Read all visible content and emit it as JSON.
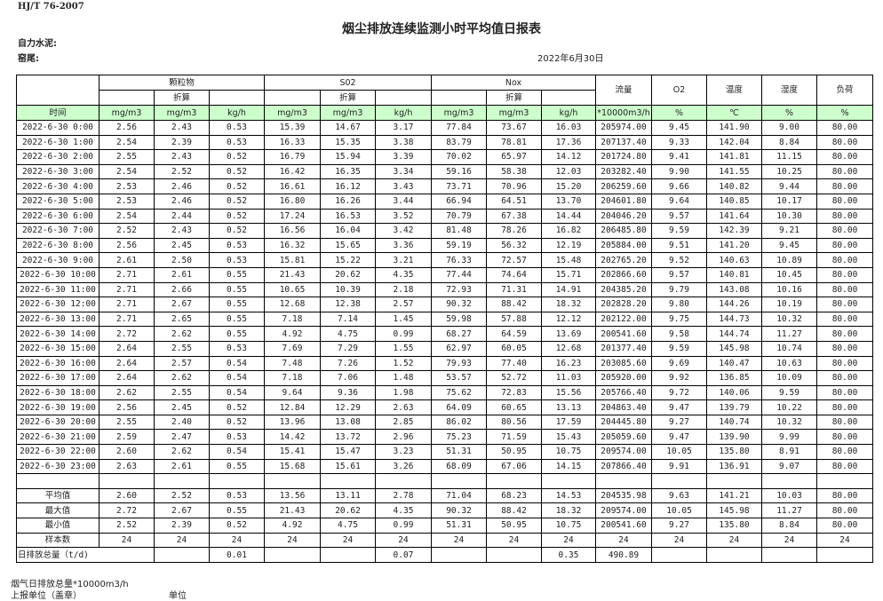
{
  "header": {
    "standard": "HJ/T  76-2007",
    "title": "烟尘排放连续监测小时平均值日报表",
    "company": "自力水泥:",
    "kiln": "窑尾:",
    "date": "2022年6月30日"
  },
  "table": {
    "groups": [
      "颗粒物",
      "S02",
      "Nox"
    ],
    "single_cols": [
      "流量",
      "O2",
      "温度",
      "湿度",
      "负荷"
    ],
    "sub_label": "折算",
    "time_label": "时间",
    "units": [
      "mg/m3",
      "mg/m3",
      "kg/h",
      "mg/m3",
      "mg/m3",
      "kg/h",
      "mg/m3",
      "mg/m3",
      "kg/h",
      "*10000m3/h",
      "%",
      "℃",
      "%",
      "%"
    ],
    "rows": [
      [
        "2022-6-30 0:00",
        "2.56",
        "2.43",
        "0.53",
        "15.39",
        "14.67",
        "3.17",
        "77.84",
        "73.67",
        "16.03",
        "205974.00",
        "9.45",
        "141.90",
        "9.00",
        "80.00"
      ],
      [
        "2022-6-30 1:00",
        "2.54",
        "2.39",
        "0.53",
        "16.33",
        "15.35",
        "3.38",
        "83.79",
        "78.81",
        "17.36",
        "207137.40",
        "9.33",
        "142.04",
        "8.84",
        "80.00"
      ],
      [
        "2022-6-30 2:00",
        "2.55",
        "2.43",
        "0.52",
        "16.79",
        "15.94",
        "3.39",
        "70.02",
        "65.97",
        "14.12",
        "201724.80",
        "9.41",
        "141.81",
        "11.15",
        "80.00"
      ],
      [
        "2022-6-30 3:00",
        "2.54",
        "2.52",
        "0.52",
        "16.42",
        "16.35",
        "3.34",
        "59.16",
        "58.38",
        "12.03",
        "203282.40",
        "9.90",
        "141.55",
        "10.25",
        "80.00"
      ],
      [
        "2022-6-30 4:00",
        "2.53",
        "2.46",
        "0.52",
        "16.61",
        "16.12",
        "3.43",
        "73.71",
        "70.96",
        "15.20",
        "206259.60",
        "9.66",
        "140.82",
        "9.44",
        "80.00"
      ],
      [
        "2022-6-30 5:00",
        "2.53",
        "2.46",
        "0.52",
        "16.80",
        "16.26",
        "3.44",
        "66.94",
        "64.51",
        "13.70",
        "204601.80",
        "9.64",
        "140.85",
        "10.17",
        "80.00"
      ],
      [
        "2022-6-30 6:00",
        "2.54",
        "2.44",
        "0.52",
        "17.24",
        "16.53",
        "3.52",
        "70.79",
        "67.38",
        "14.44",
        "204046.20",
        "9.57",
        "141.64",
        "10.30",
        "80.00"
      ],
      [
        "2022-6-30 7:00",
        "2.52",
        "2.43",
        "0.52",
        "16.56",
        "16.04",
        "3.42",
        "81.48",
        "78.26",
        "16.82",
        "206485.80",
        "9.59",
        "142.39",
        "9.21",
        "80.00"
      ],
      [
        "2022-6-30 8:00",
        "2.56",
        "2.45",
        "0.53",
        "16.32",
        "15.65",
        "3.36",
        "59.19",
        "56.32",
        "12.19",
        "205884.00",
        "9.51",
        "141.20",
        "9.45",
        "80.00"
      ],
      [
        "2022-6-30 9:00",
        "2.61",
        "2.50",
        "0.53",
        "15.81",
        "15.22",
        "3.21",
        "76.33",
        "72.57",
        "15.48",
        "202765.20",
        "9.52",
        "140.63",
        "10.89",
        "80.00"
      ],
      [
        "2022-6-30 10:00",
        "2.71",
        "2.61",
        "0.55",
        "21.43",
        "20.62",
        "4.35",
        "77.44",
        "74.64",
        "15.71",
        "202866.60",
        "9.57",
        "140.81",
        "10.45",
        "80.00"
      ],
      [
        "2022-6-30 11:00",
        "2.71",
        "2.66",
        "0.55",
        "10.65",
        "10.39",
        "2.18",
        "72.93",
        "71.31",
        "14.91",
        "204385.20",
        "9.79",
        "143.08",
        "10.16",
        "80.00"
      ],
      [
        "2022-6-30 12:00",
        "2.71",
        "2.67",
        "0.55",
        "12.68",
        "12.38",
        "2.57",
        "90.32",
        "88.42",
        "18.32",
        "202828.20",
        "9.80",
        "144.26",
        "10.19",
        "80.00"
      ],
      [
        "2022-6-30 13:00",
        "2.71",
        "2.65",
        "0.55",
        "7.18",
        "7.14",
        "1.45",
        "59.98",
        "57.88",
        "12.12",
        "202122.00",
        "9.75",
        "144.73",
        "10.32",
        "80.00"
      ],
      [
        "2022-6-30 14:00",
        "2.72",
        "2.62",
        "0.55",
        "4.92",
        "4.75",
        "0.99",
        "68.27",
        "64.59",
        "13.69",
        "200541.60",
        "9.58",
        "144.74",
        "11.27",
        "80.00"
      ],
      [
        "2022-6-30 15:00",
        "2.64",
        "2.55",
        "0.53",
        "7.69",
        "7.29",
        "1.55",
        "62.97",
        "60.05",
        "12.68",
        "201377.40",
        "9.59",
        "145.98",
        "10.74",
        "80.00"
      ],
      [
        "2022-6-30 16:00",
        "2.64",
        "2.57",
        "0.54",
        "7.48",
        "7.26",
        "1.52",
        "79.93",
        "77.40",
        "16.23",
        "203085.60",
        "9.69",
        "140.47",
        "10.63",
        "80.00"
      ],
      [
        "2022-6-30 17:00",
        "2.64",
        "2.62",
        "0.54",
        "7.18",
        "7.06",
        "1.48",
        "53.57",
        "52.72",
        "11.03",
        "205920.00",
        "9.92",
        "136.85",
        "10.09",
        "80.00"
      ],
      [
        "2022-6-30 18:00",
        "2.62",
        "2.55",
        "0.54",
        "9.64",
        "9.36",
        "1.98",
        "75.62",
        "72.83",
        "15.56",
        "205766.40",
        "9.72",
        "140.06",
        "9.59",
        "80.00"
      ],
      [
        "2022-6-30 19:00",
        "2.56",
        "2.45",
        "0.52",
        "12.84",
        "12.29",
        "2.63",
        "64.09",
        "60.65",
        "13.13",
        "204863.40",
        "9.47",
        "139.79",
        "10.22",
        "80.00"
      ],
      [
        "2022-6-30 20:00",
        "2.55",
        "2.40",
        "0.52",
        "13.96",
        "13.08",
        "2.85",
        "86.02",
        "80.56",
        "17.59",
        "204445.80",
        "9.27",
        "140.74",
        "10.32",
        "80.00"
      ],
      [
        "2022-6-30 21:00",
        "2.59",
        "2.47",
        "0.53",
        "14.42",
        "13.72",
        "2.96",
        "75.23",
        "71.59",
        "15.43",
        "205059.60",
        "9.47",
        "139.90",
        "9.99",
        "80.00"
      ],
      [
        "2022-6-30 22:00",
        "2.60",
        "2.62",
        "0.54",
        "15.41",
        "15.47",
        "3.23",
        "51.31",
        "50.95",
        "10.75",
        "209574.00",
        "10.05",
        "135.80",
        "8.91",
        "80.00"
      ],
      [
        "2022-6-30 23:00",
        "2.63",
        "2.61",
        "0.55",
        "15.68",
        "15.61",
        "3.26",
        "68.09",
        "67.06",
        "14.15",
        "207866.40",
        "9.91",
        "136.91",
        "9.07",
        "80.00"
      ]
    ],
    "stats": [
      [
        "平均值",
        "2.60",
        "2.52",
        "0.53",
        "13.56",
        "13.11",
        "2.78",
        "71.04",
        "68.23",
        "14.53",
        "204535.98",
        "9.63",
        "141.21",
        "10.03",
        "80.00"
      ],
      [
        "最大值",
        "2.72",
        "2.67",
        "0.55",
        "21.43",
        "20.62",
        "4.35",
        "90.32",
        "88.42",
        "18.32",
        "209574.00",
        "10.05",
        "145.98",
        "11.27",
        "80.00"
      ],
      [
        "最小值",
        "2.52",
        "2.39",
        "0.52",
        "4.92",
        "4.75",
        "0.99",
        "51.31",
        "50.95",
        "10.75",
        "200541.60",
        "9.27",
        "135.80",
        "8.84",
        "80.00"
      ],
      [
        "样本数",
        "24",
        "24",
        "24",
        "24",
        "24",
        "24",
        "24",
        "24",
        "24",
        "24",
        "24",
        "24",
        "24",
        "24"
      ]
    ],
    "total": {
      "label": "日排放总量（t/d)",
      "values": [
        "",
        "0.01",
        "",
        "",
        "0.07",
        "",
        "",
        "0.35",
        "490.89",
        "",
        "",
        "",
        ""
      ]
    }
  },
  "footer": {
    "flue_total": "烟气日排放总量*10000m3/h",
    "reporter": "上报单位（盖章）",
    "unit": "单位"
  }
}
